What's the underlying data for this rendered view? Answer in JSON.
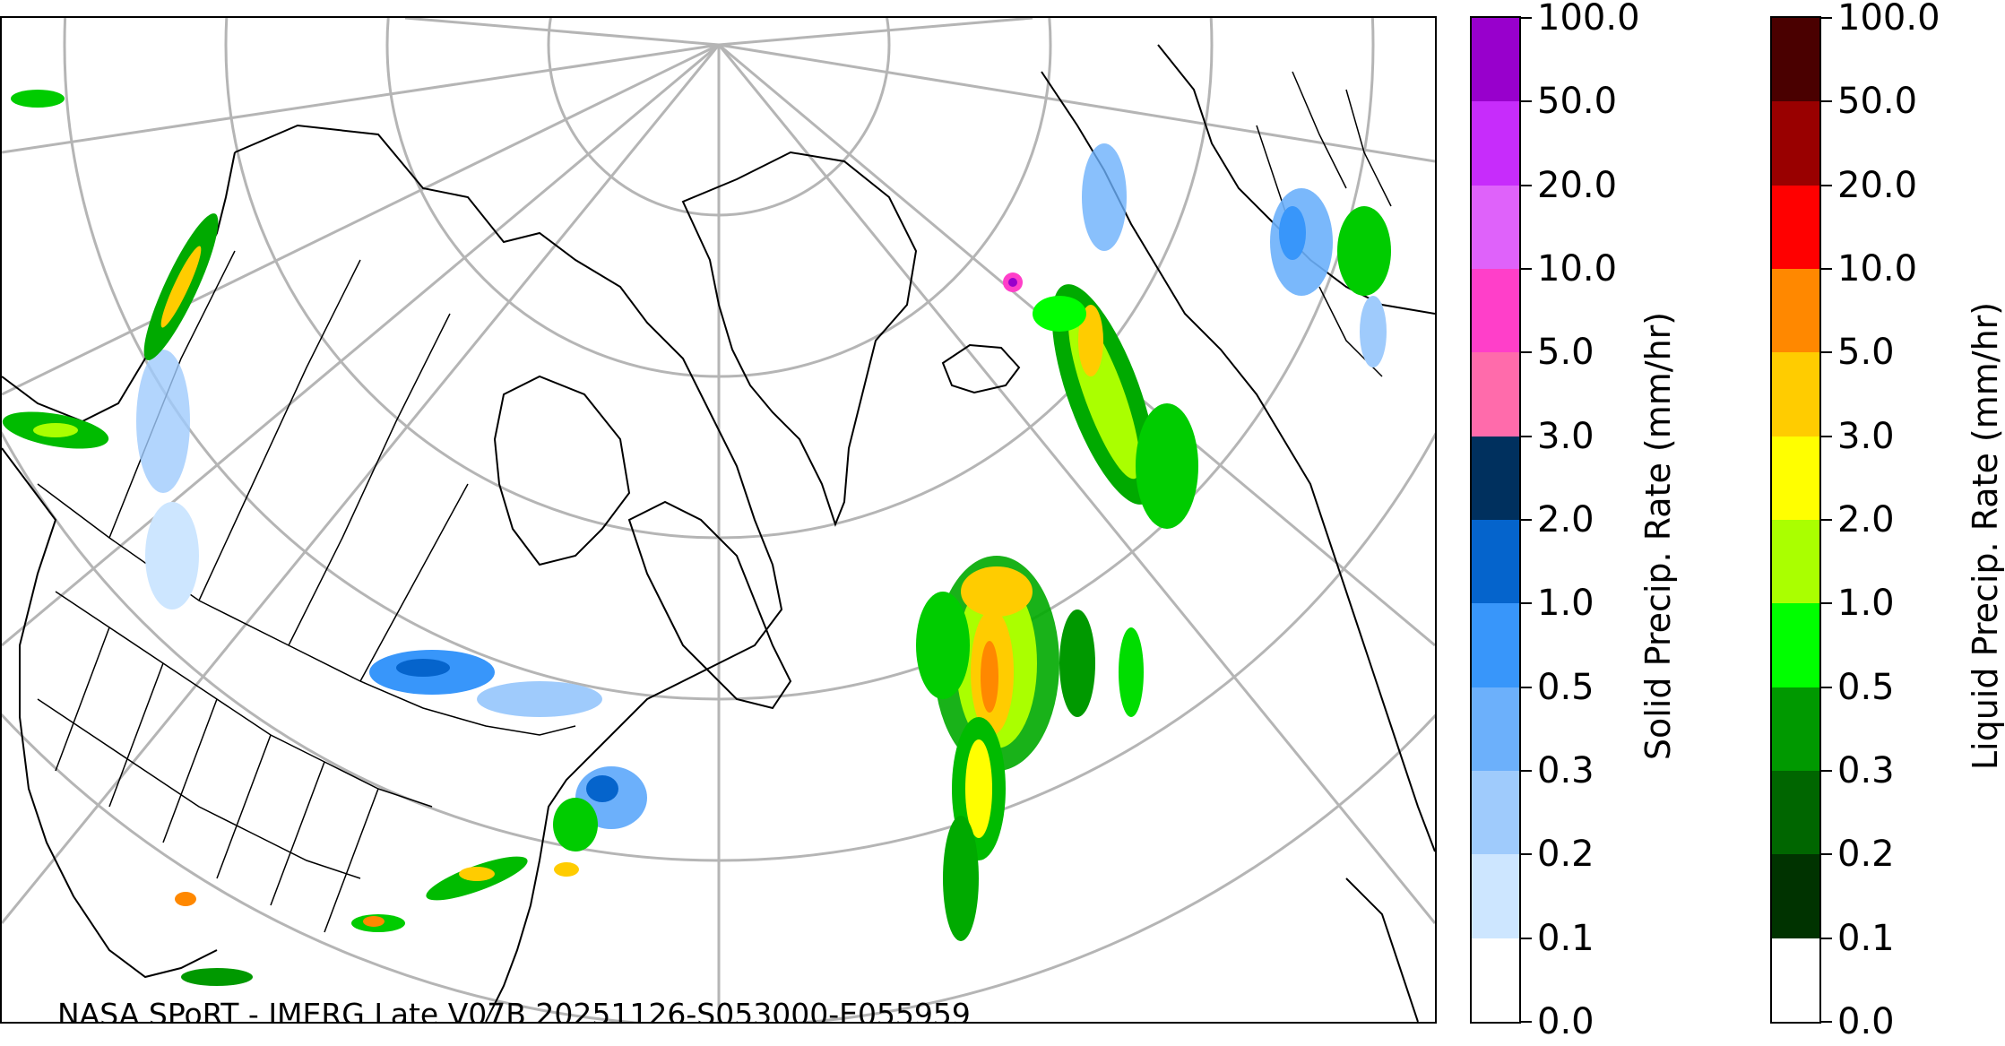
{
  "map": {
    "caption": "NASA SPoRT - IMERG Late V07B 20251126-S053000-E055959",
    "colors": {
      "coast": "#000000",
      "grid": "#b5b5b5",
      "border": "#000000"
    }
  },
  "colorbars": [
    {
      "title": "Solid Precip. Rate (mm/hr)",
      "ticks": [
        "0.0",
        "0.1",
        "0.2",
        "0.3",
        "0.5",
        "1.0",
        "2.0",
        "3.0",
        "5.0",
        "10.0",
        "20.0",
        "50.0",
        "100.0"
      ],
      "colors": [
        "#ffffff",
        "#cde6ff",
        "#9fcbfc",
        "#6cb0fb",
        "#3896fa",
        "#0564cc",
        "#00305e",
        "#ff6bab",
        "#ff3fc9",
        "#df62fa",
        "#c72cfb",
        "#9800cc"
      ]
    },
    {
      "title": "Liquid Precip. Rate (mm/hr)",
      "ticks": [
        "0.0",
        "0.1",
        "0.2",
        "0.3",
        "0.5",
        "1.0",
        "2.0",
        "3.0",
        "5.0",
        "10.0",
        "20.0",
        "50.0",
        "100.0"
      ],
      "colors": [
        "#ffffff",
        "#003300",
        "#006600",
        "#009900",
        "#00ff00",
        "#aaff00",
        "#ffff00",
        "#ffcc00",
        "#ff8800",
        "#ff0000",
        "#990000",
        "#4a0000"
      ]
    }
  ]
}
